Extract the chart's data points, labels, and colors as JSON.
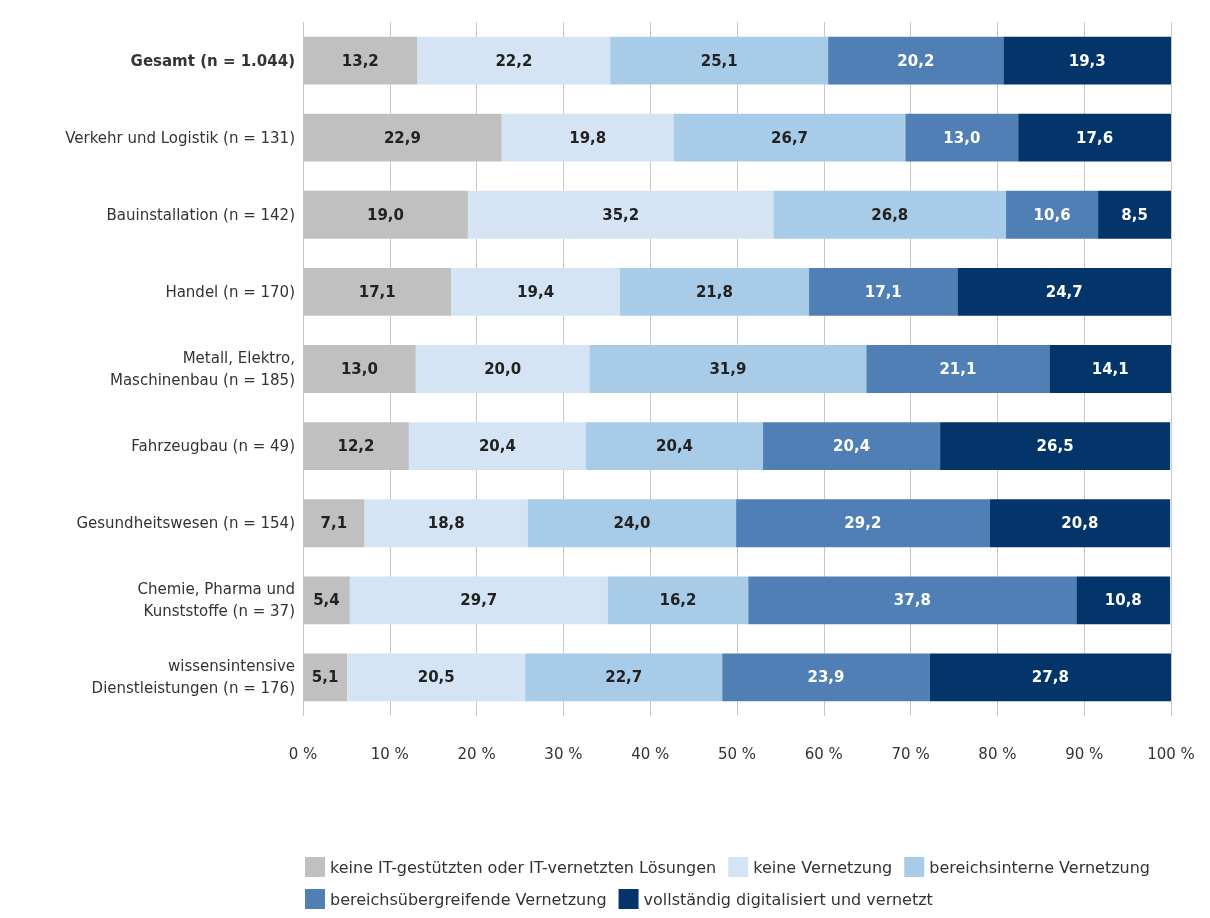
{
  "chart_data": {
    "type": "bar",
    "orientation": "horizontal",
    "stacked": true,
    "categories": [
      "Gesamt (n = 1.044)",
      "Verkehr und Logistik (n = 131)",
      "Bauinstallation (n = 142)",
      "Handel (n = 170)",
      "Metall, Elektro,\nMaschinenbau (n = 185)",
      "Fahrzeugbau (n = 49)",
      "Gesundheitswesen (n = 154)",
      "Chemie, Pharma und\nKunststoffe (n = 37)",
      "wissensintensive\nDienstleistungen (n = 176)"
    ],
    "series": [
      {
        "name": "keine IT-gestützten oder IT-vernetzten Lösungen",
        "color": "#c0c0c1",
        "values": [
          13.2,
          22.9,
          19.0,
          17.1,
          13.0,
          12.2,
          7.1,
          5.4,
          5.1
        ],
        "value_labels": [
          "13,2",
          "22,9",
          "19,0",
          "17,1",
          "13,0",
          "12,2",
          "7,1",
          "5,4",
          "5,1"
        ]
      },
      {
        "name": "keine Vernetzung",
        "color": "#d5e4f4",
        "values": [
          22.2,
          19.8,
          35.2,
          19.4,
          20.0,
          20.4,
          18.8,
          29.7,
          20.5
        ],
        "value_labels": [
          "22,2",
          "19,8",
          "35,2",
          "19,4",
          "20,0",
          "20,4",
          "18,8",
          "29,7",
          "20,5"
        ]
      },
      {
        "name": "bereichsinterne Vernetzung",
        "color": "#a8cbe8",
        "values": [
          25.1,
          26.7,
          26.8,
          21.8,
          31.9,
          20.4,
          24.0,
          16.2,
          22.7
        ],
        "value_labels": [
          "25,1",
          "26,7",
          "26,8",
          "21,8",
          "31,9",
          "20,4",
          "24,0",
          "16,2",
          "22,7"
        ]
      },
      {
        "name": "bereichsübergreifende Vernetzung",
        "color": "#4f7fb4",
        "values": [
          20.2,
          13.0,
          10.6,
          17.1,
          21.1,
          20.4,
          29.2,
          37.8,
          23.9
        ],
        "value_labels": [
          "20,2",
          "13,0",
          "10,6",
          "17,1",
          "21,1",
          "20,4",
          "29,2",
          "37,8",
          "23,9"
        ]
      },
      {
        "name": "vollständig digitalisiert und vernetzt",
        "color": "#03356a",
        "values": [
          19.3,
          17.6,
          8.5,
          24.7,
          14.1,
          26.5,
          20.8,
          10.8,
          27.8
        ],
        "value_labels": [
          "19,3",
          "17,6",
          "8,5",
          "24,7",
          "14,1",
          "26,5",
          "20,8",
          "10,8",
          "27,8"
        ]
      }
    ],
    "xlim": [
      0,
      100
    ],
    "xticks": [
      {
        "value": 0,
        "label": "0 %"
      },
      {
        "value": 10,
        "label": "10 %"
      },
      {
        "value": 20,
        "label": "20 %"
      },
      {
        "value": 30,
        "label": "30 %"
      },
      {
        "value": 40,
        "label": "40 %"
      },
      {
        "value": 50,
        "label": "50 %"
      },
      {
        "value": 60,
        "label": "60 %"
      },
      {
        "value": 70,
        "label": "70 %"
      },
      {
        "value": 80,
        "label": "80 %"
      },
      {
        "value": 90,
        "label": "90 %"
      },
      {
        "value": 100,
        "label": "100 %"
      }
    ],
    "grid": "x",
    "legend": "bottom"
  }
}
